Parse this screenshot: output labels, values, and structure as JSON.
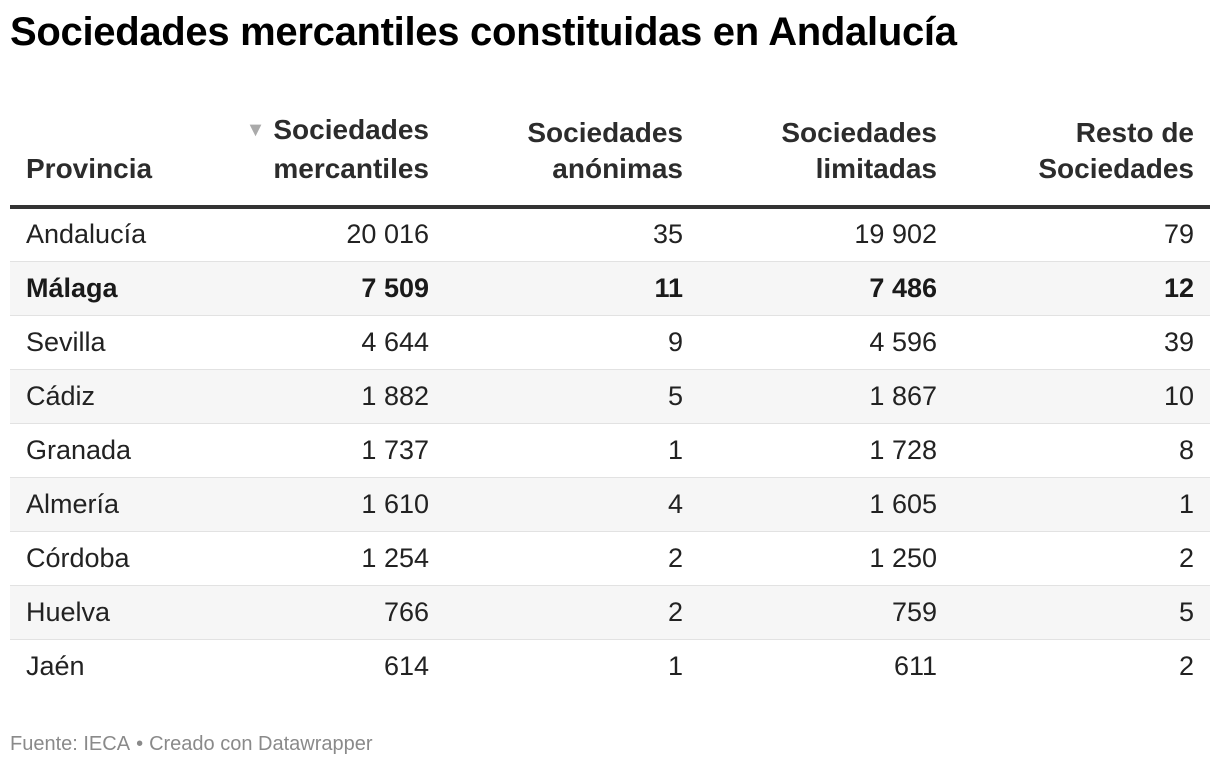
{
  "title": "Sociedades mercantiles constituidas en Andalucía",
  "chart_data": {
    "type": "table",
    "title": "Sociedades mercantiles constituidas en Andalucía",
    "sort": {
      "column": 1,
      "direction": "desc",
      "indicator": "▼"
    },
    "columns": [
      {
        "line1": "",
        "line2": "Provincia"
      },
      {
        "line1": "Sociedades",
        "line2": "mercantiles"
      },
      {
        "line1": "Sociedades",
        "line2": "anónimas"
      },
      {
        "line1": "Sociedades",
        "line2": "limitadas"
      },
      {
        "line1": "Resto de",
        "line2": "Sociedades"
      }
    ],
    "rows": [
      {
        "provincia": "Andalucía",
        "values": [
          "20 016",
          "35",
          "19 902",
          "79"
        ],
        "bold": false
      },
      {
        "provincia": "Málaga",
        "values": [
          "7 509",
          "11",
          "7 486",
          "12"
        ],
        "bold": true
      },
      {
        "provincia": "Sevilla",
        "values": [
          "4 644",
          "9",
          "4 596",
          "39"
        ],
        "bold": false
      },
      {
        "provincia": "Cádiz",
        "values": [
          "1 882",
          "5",
          "1 867",
          "10"
        ],
        "bold": false
      },
      {
        "provincia": "Granada",
        "values": [
          "1 737",
          "1",
          "1 728",
          "8"
        ],
        "bold": false
      },
      {
        "provincia": "Almería",
        "values": [
          "1 610",
          "4",
          "1 605",
          "1"
        ],
        "bold": false
      },
      {
        "provincia": "Córdoba",
        "values": [
          "1 254",
          "2",
          "1 250",
          "2"
        ],
        "bold": false
      },
      {
        "provincia": "Huelva",
        "values": [
          "766",
          "2",
          "759",
          "5"
        ],
        "bold": false
      },
      {
        "provincia": "Jaén",
        "values": [
          "614",
          "1",
          "611",
          "2"
        ],
        "bold": false
      }
    ]
  },
  "footer": {
    "source": "Fuente: IECA",
    "separator": "•",
    "credit": "Creado con Datawrapper"
  },
  "colors": {
    "stripe": "#f6f6f6",
    "header_rule": "#333333",
    "row_rule": "#e2e2e2",
    "sort_indicator": "#aaaaaa",
    "footer_text": "#8a8a8a"
  }
}
